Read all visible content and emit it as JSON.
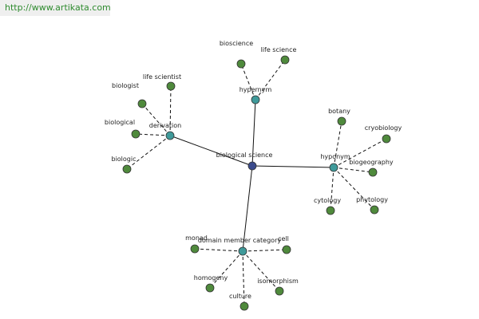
{
  "header": {
    "url": "http://www.artikata.com"
  },
  "nodes": [
    {
      "label": "biological science"
    },
    {
      "label": "hypernym"
    },
    {
      "label": "derivation"
    },
    {
      "label": "hyponym"
    },
    {
      "label": "domain member category"
    },
    {
      "label": "bioscience"
    },
    {
      "label": "life science"
    },
    {
      "label": "biologist"
    },
    {
      "label": "life scientist"
    },
    {
      "label": "biological"
    },
    {
      "label": "biologic"
    },
    {
      "label": "botany"
    },
    {
      "label": "cryobiology"
    },
    {
      "label": "biogeography"
    },
    {
      "label": "phytology"
    },
    {
      "label": "cytology"
    },
    {
      "label": "monad"
    },
    {
      "label": "cell"
    },
    {
      "label": "homogeny"
    },
    {
      "label": "culture"
    },
    {
      "label": "isomorphism"
    }
  ]
}
